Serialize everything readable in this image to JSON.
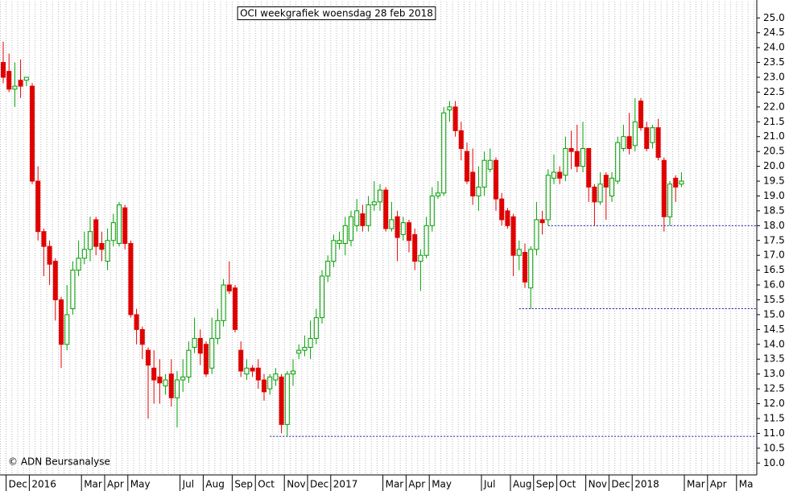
{
  "chart_data": {
    "type": "candlestick",
    "title": "OCI weekgrafiek woensdag 28 feb 2018",
    "copyright": "© ADN Beursanalyse",
    "categories": [
      null,
      "Dec",
      null,
      null,
      null,
      "2016",
      null,
      null,
      null,
      null,
      null,
      null,
      null,
      null,
      "Mar",
      null,
      null,
      null,
      "Apr",
      null,
      null,
      null,
      "May",
      null,
      null,
      null,
      null,
      null,
      null,
      null,
      null,
      "Jul",
      null,
      null,
      null,
      "Aug",
      null,
      null,
      null,
      null,
      "Sep",
      null,
      null,
      null,
      "Oct",
      null,
      null,
      null,
      null,
      "Nov",
      null,
      null,
      null,
      "Dec",
      null,
      null,
      null,
      "2017",
      null,
      null,
      null,
      null,
      null,
      null,
      null,
      null,
      "Mar",
      null,
      null,
      null,
      "Apr",
      null,
      null,
      null,
      "May",
      null,
      null,
      null,
      null,
      null,
      null,
      null,
      null,
      "Jul",
      null,
      null,
      null,
      null,
      "Aug",
      null,
      null,
      null,
      "Sep",
      null,
      null,
      null,
      "Oct",
      null,
      null,
      null,
      null,
      "Nov",
      null,
      null,
      null,
      "Dec",
      null,
      null,
      null,
      "2018",
      null,
      null,
      null,
      null,
      null,
      null,
      null,
      null,
      "Mar",
      null,
      null,
      null,
      "Apr",
      null,
      null,
      null,
      null,
      "Ma",
      null,
      null,
      null
    ],
    "open": [
      23.5,
      23.2,
      22.6,
      22.9,
      22.9,
      22.7,
      19.5,
      17.8,
      17.3,
      16.8,
      15.5,
      14.0,
      15.2,
      16.5,
      16.9,
      17.2,
      18.2,
      17.4,
      16.8,
      17.5,
      17.4,
      18.6,
      17.4,
      15.0,
      14.5,
      13.8,
      13.2,
      12.9,
      12.6,
      13.0,
      12.2,
      12.8,
      12.9,
      13.9,
      14.2,
      14.0,
      13.2,
      14.2,
      14.8,
      16.0,
      15.9,
      13.8,
      13.0,
      13.2,
      13.2,
      12.8,
      12.5,
      12.8,
      12.9,
      11.3,
      13.0,
      13.7,
      13.8,
      13.9,
      14.2,
      14.9,
      16.3,
      16.8,
      17.4,
      17.4,
      17.5,
      18.0,
      18.4,
      18.0,
      18.7,
      18.8,
      19.2,
      17.9,
      18.3,
      17.7,
      18.1,
      17.7,
      16.8,
      17.0,
      18.0,
      19.0,
      19.1,
      21.9,
      22.0,
      21.2,
      20.5,
      19.8,
      19.0,
      19.3,
      19.9,
      20.2,
      18.9,
      18.5,
      18.3,
      17.0,
      17.1,
      15.9,
      17.2,
      18.2,
      18.2,
      19.6,
      19.8,
      19.7,
      20.6,
      20.5,
      20.0,
      20.6,
      19.3,
      18.8,
      19.7,
      19.0,
      19.5,
      20.6,
      21.0,
      20.7,
      22.2,
      21.3,
      20.8,
      21.3,
      20.2,
      18.3,
      19.6,
      19.4,
      null,
      null,
      null,
      null,
      null,
      null,
      null,
      null,
      null,
      null,
      null,
      null,
      null
    ],
    "high": [
      24.2,
      23.8,
      23.5,
      23.6,
      23.0,
      22.8,
      20.0,
      17.9,
      17.5,
      16.9,
      15.6,
      16.0,
      16.8,
      17.5,
      17.8,
      18.3,
      18.3,
      17.8,
      17.9,
      18.4,
      18.8,
      18.7,
      17.5,
      15.2,
      14.6,
      13.9,
      13.8,
      13.5,
      13.0,
      13.5,
      13.1,
      13.5,
      14.1,
      14.9,
      14.5,
      14.1,
      14.9,
      15.2,
      16.2,
      16.8,
      16.0,
      14.1,
      13.5,
      13.3,
      13.5,
      13.0,
      13.0,
      13.2,
      13.0,
      13.1,
      13.5,
      14.0,
      14.3,
      14.8,
      15.2,
      16.5,
      17.0,
      17.7,
      17.8,
      18.3,
      18.5,
      18.9,
      18.7,
      19.0,
      19.5,
      19.4,
      19.3,
      18.8,
      18.5,
      18.3,
      18.2,
      17.9,
      17.2,
      18.3,
      19.3,
      19.5,
      22.0,
      22.2,
      22.2,
      21.5,
      20.8,
      20.6,
      20.0,
      20.5,
      20.6,
      20.3,
      19.1,
      18.6,
      18.4,
      17.5,
      17.4,
      17.3,
      18.8,
      18.5,
      19.9,
      20.4,
      20.0,
      21.0,
      21.2,
      21.4,
      21.5,
      20.6,
      19.4,
      19.8,
      19.8,
      19.8,
      21.0,
      21.4,
      21.8,
      22.3,
      22.3,
      21.5,
      21.4,
      21.6,
      20.3,
      19.5,
      19.7,
      19.8,
      null,
      null,
      null,
      null,
      null,
      null,
      null,
      null,
      null,
      null,
      null,
      null,
      null
    ],
    "low": [
      22.8,
      22.5,
      22.0,
      22.3,
      22.7,
      19.4,
      17.5,
      16.3,
      16.0,
      14.8,
      13.2,
      13.8,
      15.0,
      16.3,
      16.7,
      16.8,
      17.0,
      16.8,
      16.5,
      17.3,
      17.3,
      17.2,
      14.9,
      14.0,
      13.5,
      11.5,
      12.0,
      12.0,
      12.3,
      11.9,
      11.2,
      12.4,
      12.7,
      13.7,
      13.3,
      12.9,
      13.0,
      14.0,
      14.6,
      15.7,
      14.4,
      12.9,
      12.8,
      12.9,
      12.5,
      12.1,
      12.3,
      12.6,
      11.0,
      10.9,
      12.6,
      13.5,
      13.6,
      13.5,
      14.0,
      14.7,
      16.1,
      16.6,
      17.2,
      17.0,
      17.3,
      17.8,
      17.8,
      17.8,
      18.5,
      18.5,
      17.8,
      17.8,
      16.8,
      17.5,
      17.1,
      16.5,
      15.8,
      16.9,
      17.8,
      18.9,
      19.0,
      21.5,
      21.0,
      20.2,
      19.4,
      18.7,
      18.5,
      19.0,
      19.8,
      18.5,
      18.0,
      17.9,
      16.3,
      16.5,
      15.9,
      15.2,
      17.0,
      17.7,
      18.0,
      19.4,
      19.4,
      19.5,
      19.9,
      19.8,
      19.8,
      18.8,
      18.0,
      18.7,
      18.2,
      18.8,
      19.4,
      20.5,
      20.4,
      20.5,
      21.2,
      20.5,
      20.6,
      20.2,
      17.8,
      18.0,
      18.8,
      19.3,
      null,
      null,
      null,
      null,
      null,
      null,
      null,
      null,
      null,
      null,
      null,
      null,
      null
    ],
    "close": [
      23.0,
      22.6,
      22.7,
      22.7,
      23.0,
      19.5,
      17.8,
      17.3,
      16.7,
      15.5,
      14.0,
      15.0,
      16.5,
      16.9,
      17.2,
      17.8,
      17.3,
      17.2,
      17.5,
      18.1,
      18.7,
      17.4,
      15.0,
      14.5,
      14.0,
      13.3,
      12.8,
      12.7,
      12.8,
      12.2,
      12.8,
      12.9,
      13.8,
      14.2,
      13.7,
      13.0,
      14.2,
      14.8,
      16.0,
      15.8,
      14.5,
      13.1,
      13.2,
      13.1,
      12.8,
      12.4,
      12.9,
      13.0,
      11.3,
      13.0,
      13.1,
      13.8,
      13.9,
      14.2,
      14.9,
      16.3,
      16.8,
      17.5,
      17.5,
      18.0,
      18.3,
      18.5,
      18.0,
      18.7,
      18.8,
      19.2,
      17.9,
      18.2,
      17.6,
      18.1,
      17.5,
      16.8,
      17.0,
      18.0,
      19.0,
      19.1,
      21.8,
      22.0,
      21.2,
      20.6,
      19.5,
      19.0,
      19.3,
      20.2,
      20.2,
      18.9,
      18.2,
      18.0,
      17.0,
      17.2,
      16.1,
      17.2,
      18.2,
      18.1,
      19.7,
      19.8,
      19.6,
      20.6,
      20.5,
      20.0,
      20.6,
      19.3,
      18.8,
      19.4,
      19.3,
      19.6,
      20.8,
      21.0,
      20.6,
      21.5,
      21.3,
      20.6,
      21.3,
      20.3,
      18.3,
      19.4,
      19.3,
      19.5,
      null,
      null,
      null,
      null,
      null,
      null,
      null,
      null,
      null,
      null,
      null,
      null,
      null
    ],
    "up_color": "#00a000",
    "down_color": "#e00000",
    "hlines": [
      {
        "value": 18.0,
        "from": 94
      },
      {
        "value": 15.2,
        "from": 89
      },
      {
        "value": 10.9,
        "from": 46
      }
    ],
    "hline_color": "#1a1aa0",
    "ylim": [
      9.6,
      25.55
    ],
    "yticks": [
      {
        "value": 10,
        "label": "10.0"
      },
      {
        "value": 10.5,
        "label": "10.5"
      },
      {
        "value": 11,
        "label": "11.0"
      },
      {
        "value": 11.5,
        "label": "11.5"
      },
      {
        "value": 12,
        "label": "12.0"
      },
      {
        "value": 12.5,
        "label": "12.5"
      },
      {
        "value": 13,
        "label": "13.0"
      },
      {
        "value": 13.5,
        "label": "13.5"
      },
      {
        "value": 14,
        "label": "14.0"
      },
      {
        "value": 14.5,
        "label": "14.5"
      },
      {
        "value": 15,
        "label": "15.0"
      },
      {
        "value": 15.5,
        "label": "15.5"
      },
      {
        "value": 16,
        "label": "16.0"
      },
      {
        "value": 16.5,
        "label": "16.5"
      },
      {
        "value": 17,
        "label": "17.0"
      },
      {
        "value": 17.5,
        "label": "17.5"
      },
      {
        "value": 18,
        "label": "18.0"
      },
      {
        "value": 18.5,
        "label": "18.5"
      },
      {
        "value": 19,
        "label": "19.0"
      },
      {
        "value": 19.5,
        "label": "19.5"
      },
      {
        "value": 20,
        "label": "20.0"
      },
      {
        "value": 20.5,
        "label": "20.5"
      },
      {
        "value": 21,
        "label": "21.0"
      },
      {
        "value": 21.5,
        "label": "21.5"
      },
      {
        "value": 22,
        "label": "22.0"
      },
      {
        "value": 22.5,
        "label": "22.5"
      },
      {
        "value": 23,
        "label": "23.0"
      },
      {
        "value": 23.5,
        "label": "23.5"
      },
      {
        "value": 24,
        "label": "24.0"
      },
      {
        "value": 24.5,
        "label": "24.5"
      },
      {
        "value": 25,
        "label": "25.0"
      }
    ],
    "grid": true
  }
}
